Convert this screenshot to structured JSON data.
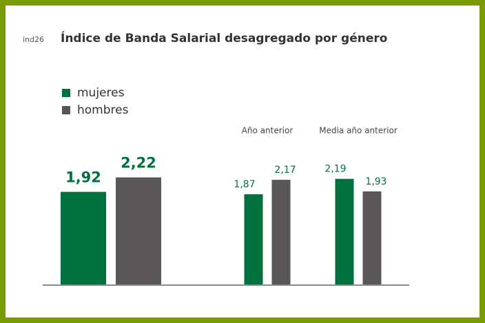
{
  "chart_data": {
    "type": "bar",
    "code": "ind26",
    "title": "Índice de Banda Salarial desagregado por género",
    "categories": [
      null,
      "Año anterior",
      "Media año anterior"
    ],
    "series": [
      {
        "name": "mujeres",
        "color": "#00703c",
        "values": [
          1.92,
          1.87,
          2.19
        ],
        "value_labels": [
          "1,92",
          "1,87",
          "2,19"
        ]
      },
      {
        "name": "hombres",
        "color": "#5a5558",
        "values": [
          2.22,
          2.17,
          1.93
        ],
        "value_labels": [
          "2,22",
          "2,17",
          "1,93"
        ]
      }
    ],
    "ylim": [
      0,
      3
    ],
    "grid": false,
    "legend": "top-left"
  }
}
